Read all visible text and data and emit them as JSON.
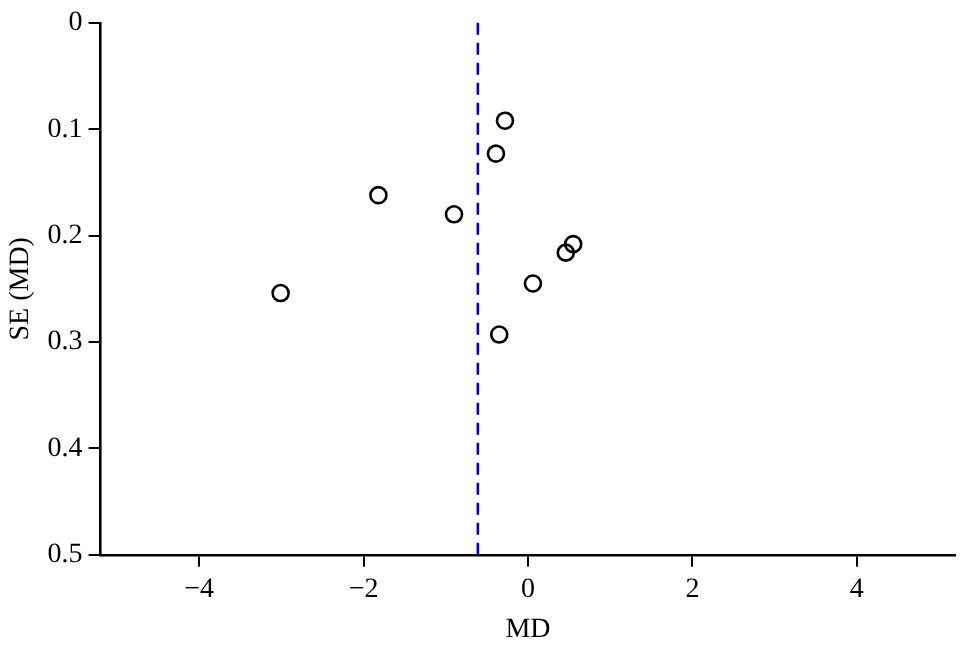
{
  "chart_data": {
    "type": "scatter",
    "xlabel": "MD",
    "ylabel": "SE (MD)",
    "x": [
      -0.28,
      -0.39,
      -1.82,
      -0.9,
      0.55,
      0.46,
      0.06,
      -3.01,
      -0.35
    ],
    "values": [
      0.092,
      0.123,
      0.162,
      0.18,
      0.208,
      0.216,
      0.245,
      0.254,
      0.293
    ],
    "color": "#000000",
    "marker": "circle",
    "xlim": [
      -5.2,
      5.2
    ],
    "xticks": [
      -4,
      -2,
      0,
      2,
      4
    ],
    "ylim": [
      0.5,
      0
    ],
    "yticks": [
      0,
      0.1,
      0.2,
      0.3,
      0.4,
      0.5
    ],
    "ref_lines": [
      {
        "axis": "x",
        "value": -0.61,
        "color": "#0000cc",
        "line_style": "dashed"
      }
    ],
    "grid": false,
    "legend": false
  }
}
